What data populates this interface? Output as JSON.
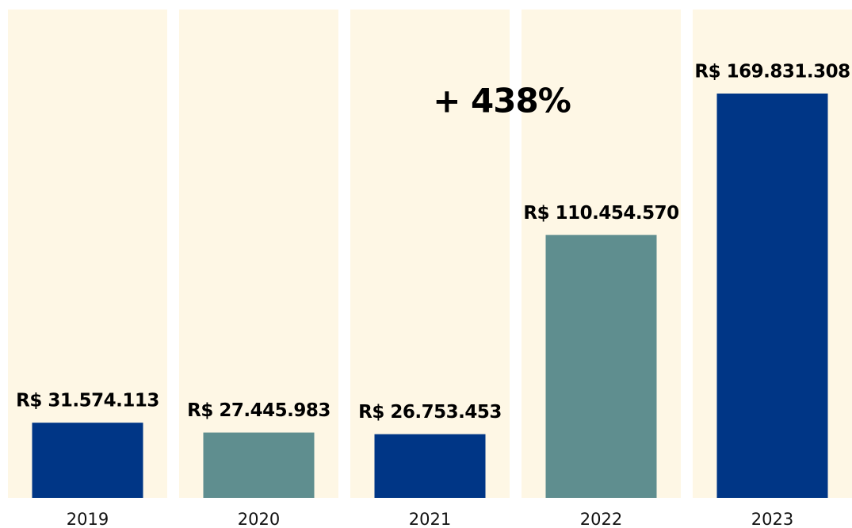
{
  "chart_data": {
    "type": "bar",
    "categories": [
      "2019",
      "2020",
      "2021",
      "2022",
      "2023"
    ],
    "values": [
      31574113,
      27445983,
      26753453,
      110454570,
      169831308
    ],
    "value_labels": [
      "R$ 31.574.113",
      "R$ 27.445.983",
      "R$ 26.753.453",
      "R$ 110.454.570",
      "R$ 169.831.308"
    ],
    "colors": [
      "#003686",
      "#5f8e8f",
      "#003686",
      "#5f8e8f",
      "#003686"
    ],
    "background": "#fef7e5",
    "annotation": "+ 438%"
  }
}
